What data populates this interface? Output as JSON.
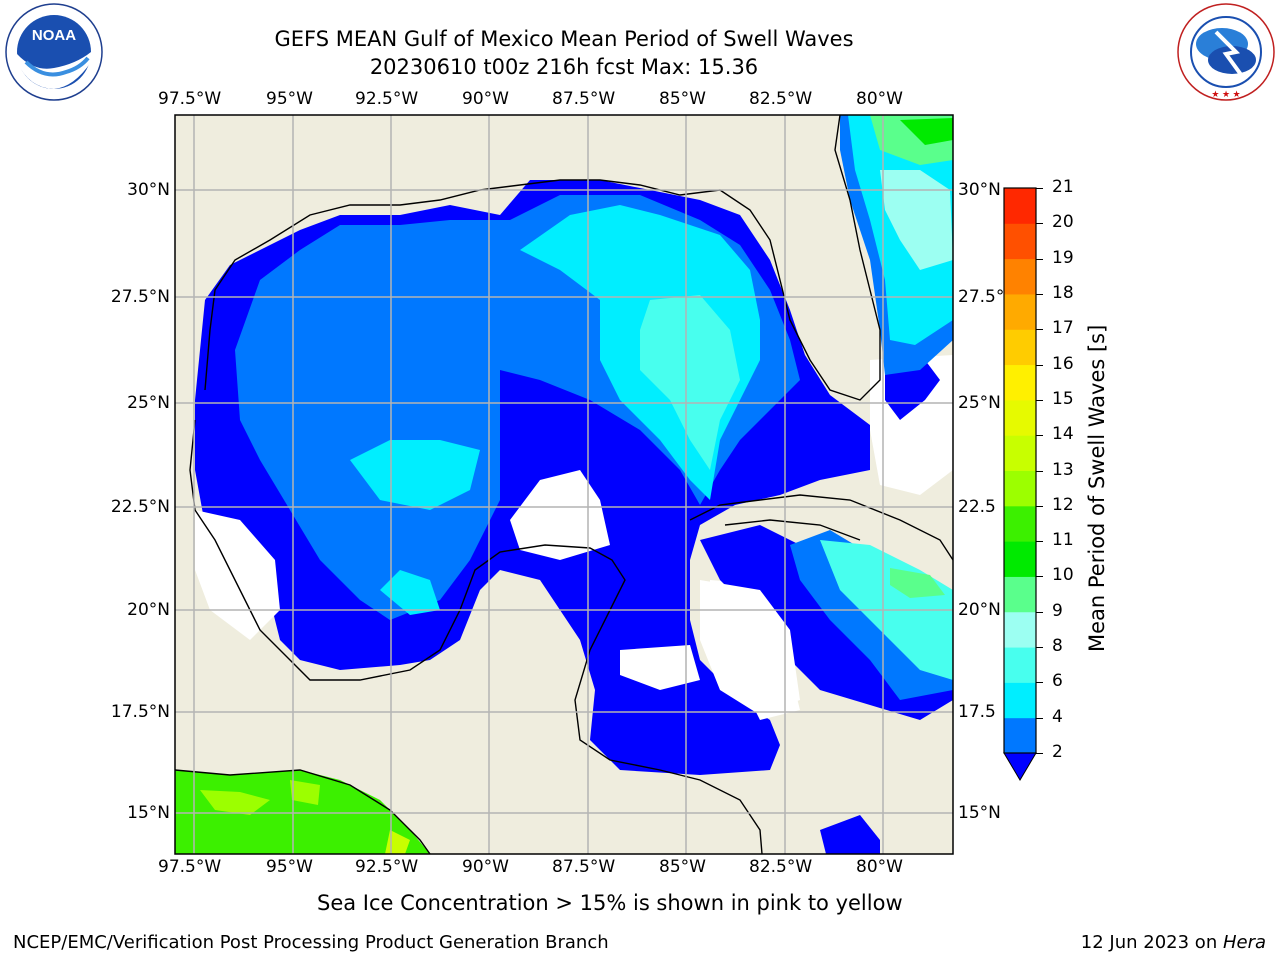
{
  "header": {
    "title_line1": "GEFS MEAN Gulf of Mexico Mean Period of Swell Waves",
    "title_line2": "20230610 t00z 216h fcst   Max: 15.36"
  },
  "logos": {
    "left": {
      "text": "NOAA",
      "ring_text": "NATIONAL OCEANIC AND ATMOSPHERIC ADMINISTRATION · U.S. DEPARTMENT OF COMMERCE"
    },
    "right": {
      "ring_text": "NATIONAL WEATHER SERVICE"
    }
  },
  "map": {
    "lon_labels": [
      "97.5°W",
      "95°W",
      "92.5°W",
      "90°W",
      "87.5°W",
      "85°W",
      "82.5°W",
      "80°W"
    ],
    "lat_labels_left": [
      "30°N",
      "27.5°N",
      "25°N",
      "22.5°N",
      "20°N",
      "17.5°N",
      "15°N"
    ],
    "lat_labels_right": [
      "30°N",
      "27.5°",
      "25°N",
      "22.5",
      "20°N",
      "17.5",
      "15°N"
    ],
    "colors": {
      "land": "#efedde",
      "grid": "#b4b4b4",
      "coast": "#000000"
    }
  },
  "colorbar": {
    "title": "Mean Period of Swell Waves [s]",
    "ticks": [
      "2",
      "4",
      "6",
      "8",
      "9",
      "10",
      "11",
      "12",
      "13",
      "14",
      "15",
      "16",
      "17",
      "18",
      "19",
      "20",
      "21"
    ],
    "colors": [
      "#0000ff",
      "#0078ff",
      "#00eeff",
      "#48ffee",
      "#9cfff2",
      "#5aff8c",
      "#00ea00",
      "#3cf000",
      "#9cff00",
      "#c8ff00",
      "#e6fa00",
      "#fff000",
      "#ffcc00",
      "#ffaa00",
      "#ff8200",
      "#ff5000",
      "#ff2800",
      "#ff0000"
    ]
  },
  "chart_data": {
    "type": "heatmap",
    "title": "GEFS MEAN Gulf of Mexico Mean Period of Swell Waves",
    "subtitle": "20230610 t00z 216h fcst   Max: 15.36",
    "units": "s",
    "variable": "Mean Period of Swell Waves [s]",
    "max": 15.36,
    "colorbar_levels": [
      2,
      4,
      6,
      8,
      9,
      10,
      11,
      12,
      13,
      14,
      15,
      16,
      17,
      18,
      19,
      20,
      21
    ],
    "x_ticks": [
      "97.5°W",
      "95°W",
      "92.5°W",
      "90°W",
      "87.5°W",
      "85°W",
      "82.5°W",
      "80°W"
    ],
    "y_ticks": [
      "30°N",
      "27.5°N",
      "25°N",
      "22.5°N",
      "20°N",
      "17.5°N",
      "15°N"
    ]
  },
  "footer": {
    "note": "Sea Ice Concentration > 15% is shown in pink to yellow",
    "credit": "NCEP/EMC/Verification Post Processing Product Generation Branch",
    "date": "12 Jun 2023 on ",
    "host": "Hera"
  }
}
